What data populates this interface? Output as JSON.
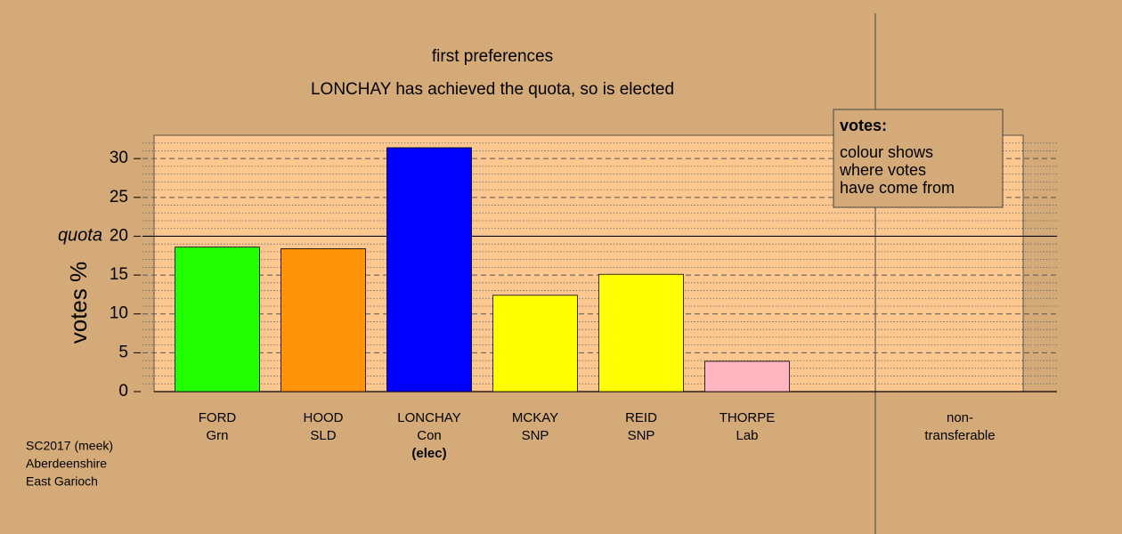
{
  "chart_data": {
    "type": "bar",
    "title": "first preferences",
    "subtitle": "LONCHAY has achieved the quota, so is elected",
    "y_label": "votes %",
    "categories": [
      [
        "FORD",
        "Grn"
      ],
      [
        "HOOD",
        "SLD"
      ],
      [
        "LONCHAY",
        "Con",
        "(elec)"
      ],
      [
        "MCKAY",
        "SNP"
      ],
      [
        "REID",
        "SNP"
      ],
      [
        "THORPE",
        "Lab"
      ],
      [
        "non-",
        "transferable"
      ]
    ],
    "values": [
      18.6,
      18.4,
      31.4,
      12.4,
      15.1,
      3.9,
      0
    ],
    "colors": [
      "#22ff00",
      "#ff940a",
      "#0000ff",
      "#ffff00",
      "#ffff00",
      "#ffb6c1",
      "#ffffff"
    ],
    "ylim": [
      0,
      33
    ],
    "yticks": [
      0,
      5,
      10,
      15,
      20,
      25,
      30
    ],
    "minor_yticks": [
      1,
      2,
      3,
      4,
      6,
      7,
      8,
      9,
      11,
      12,
      13,
      14,
      16,
      17,
      18,
      19,
      21,
      22,
      23,
      24,
      26,
      27,
      28,
      29,
      31,
      32
    ],
    "grid": true,
    "quota": 20,
    "quota_label": "quota",
    "legend": {
      "title": "votes:",
      "lines": [
        "colour shows",
        "where votes",
        "have come from"
      ]
    },
    "source": [
      "SC2017 (meek)",
      "Aberdeenshire",
      "East Garioch"
    ]
  }
}
